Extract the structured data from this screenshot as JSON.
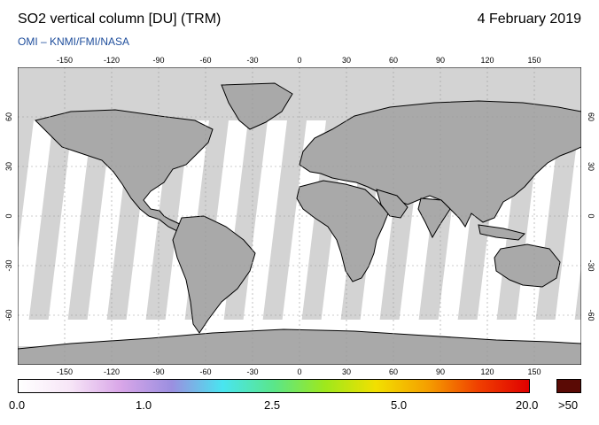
{
  "header": {
    "title": "SO2 vertical column [DU] (TRM)",
    "date": "4 February 2019",
    "subtitle": "OMI  –  KNMI/FMI/NASA"
  },
  "map": {
    "lon_ticks": [
      -150,
      -120,
      -90,
      -60,
      -30,
      0,
      30,
      60,
      90,
      120,
      150
    ],
    "lat_ticks": [
      60,
      30,
      0,
      -30,
      -60
    ],
    "colors": {
      "no_data": "#d3d3d3",
      "land": "#a9a9a9",
      "ocean": "#ffffff"
    }
  },
  "colorbar": {
    "labels": [
      "0.0",
      "1.0",
      "2.5",
      "5.0",
      "20.0",
      ">50"
    ],
    "colors": [
      "#ffffff",
      "#f7e6f7",
      "#d9a6e8",
      "#9b8fe0",
      "#49e5f0",
      "#5ae68a",
      "#9ee81c",
      "#f2e000",
      "#f5a000",
      "#f04000",
      "#e00000"
    ],
    "over_color": "#5a0a05"
  }
}
